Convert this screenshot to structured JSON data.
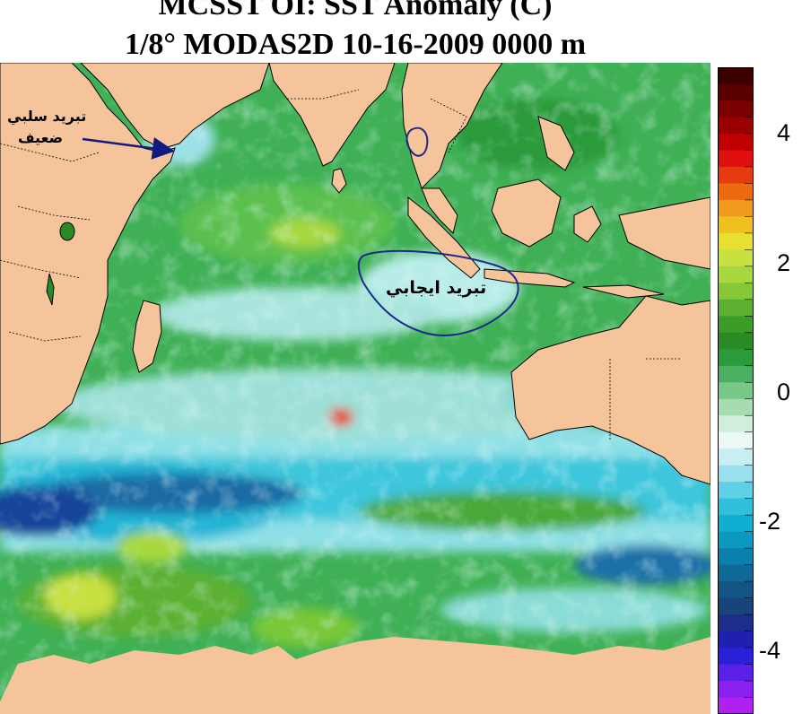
{
  "title": {
    "line1": "MCSST OI:  SST Anomaly (C)",
    "line2": "1/8° MODAS2D 10-16-2009 0000 m"
  },
  "colorbar": {
    "ticks": [
      "4",
      "2",
      "0",
      "-2",
      "-4"
    ],
    "colors": [
      "#3a0000",
      "#5a0000",
      "#7a0000",
      "#9a0000",
      "#c00000",
      "#e01010",
      "#e83a10",
      "#ee6a10",
      "#f09a20",
      "#f0c020",
      "#e8e030",
      "#c8e040",
      "#a8d840",
      "#88c838",
      "#5cb030",
      "#3c9c28",
      "#2a8a24",
      "#2a9a3a",
      "#48b060",
      "#78c888",
      "#a8dcb0",
      "#d0eedc",
      "#ecf8f6",
      "#c8eef4",
      "#98e0ee",
      "#60d0e6",
      "#30c0de",
      "#10aed0",
      "#0c98c0",
      "#0c80ac",
      "#106a98",
      "#145484",
      "#18447a",
      "#1c2e8a",
      "#2020b0",
      "#2a20d8",
      "#5a20e8",
      "#8a20f0",
      "#b020f0"
    ]
  },
  "annotations": {
    "weak_cooling_line1": "تبريد سلبي",
    "weak_cooling_line2": "ضعيف",
    "positive_cooling": "تبريد ايجابي"
  },
  "colors": {
    "land": "#f5c49a",
    "ocean_base": "#3fb055",
    "arrow": "#101a80",
    "ellipse": "#1c2a8a"
  }
}
